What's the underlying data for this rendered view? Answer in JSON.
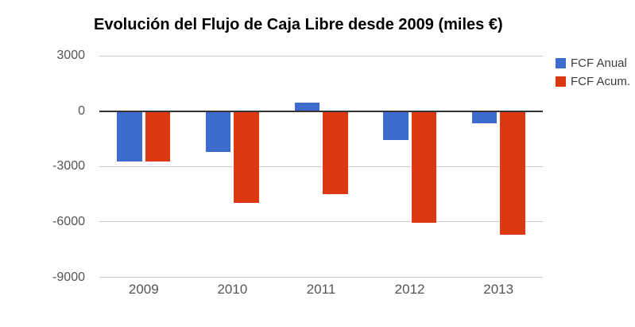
{
  "chart_data": {
    "type": "bar",
    "title": "Evolución del Flujo de Caja Libre desde 2009 (miles €)",
    "categories": [
      "2009",
      "2010",
      "2011",
      "2012",
      "2013"
    ],
    "series": [
      {
        "name": "FCF Anual",
        "color": "#3D6CCE",
        "values": [
          -2750,
          -2200,
          450,
          -1550,
          -650
        ]
      },
      {
        "name": "FCF Acum.",
        "color": "#DC3912",
        "values": [
          -2750,
          -4950,
          -4500,
          -6050,
          -6700
        ]
      }
    ],
    "xlabel": "",
    "ylabel": "",
    "ylim": [
      -9000,
      3000
    ],
    "yticks": [
      3000,
      0,
      -3000,
      -6000,
      -9000
    ],
    "grid": true,
    "legend_position": "right",
    "colors": {
      "grid": "#cccccc",
      "zero_axis": "#333333",
      "axis_text": "#555555",
      "legend_text": "#3c3c3c",
      "title_text": "#000000",
      "background": "#ffffff"
    }
  }
}
